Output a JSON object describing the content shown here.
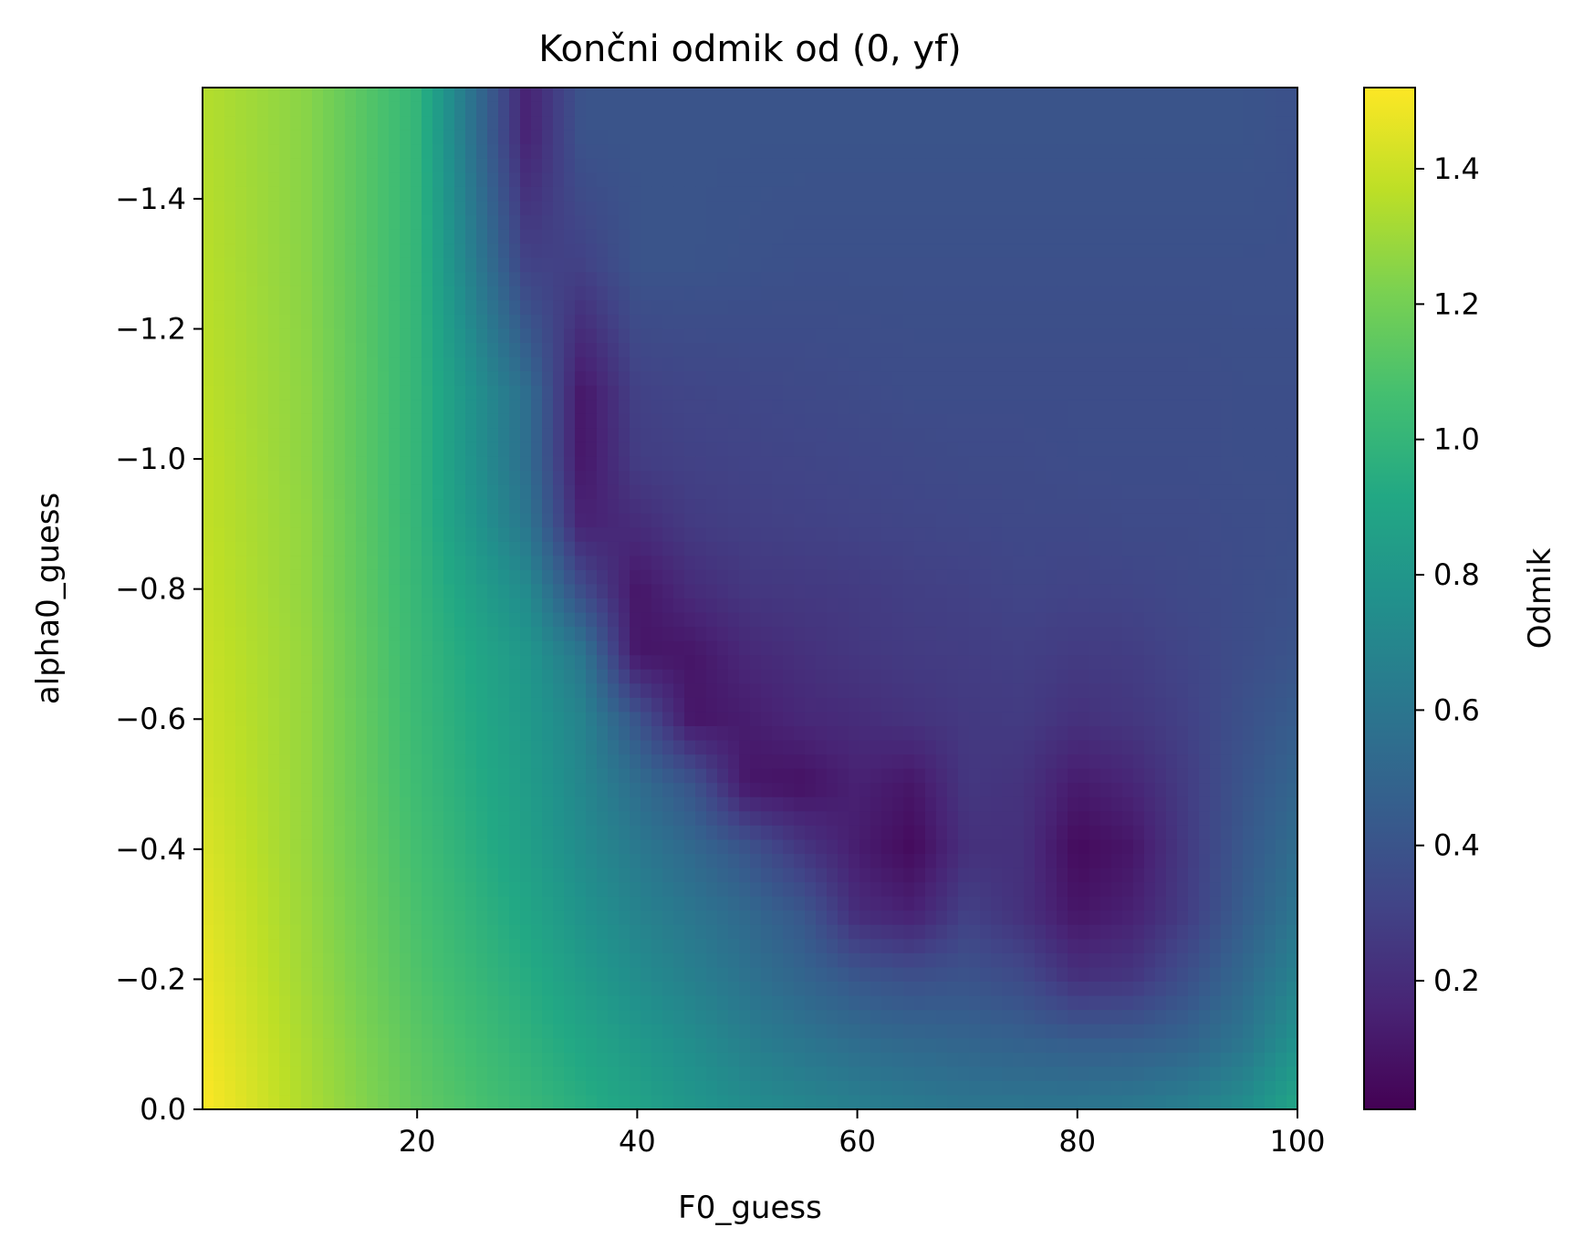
{
  "chart_data": {
    "type": "heatmap",
    "title": "Končni odmik od (0, yf)",
    "xlabel": "F0_guess",
    "ylabel": "alpha0_guess",
    "xlim": [
      0.5,
      100
    ],
    "ylim": [
      0,
      -1.571
    ],
    "y_axis_inverted": true,
    "x_ticks": [
      20,
      40,
      60,
      80,
      100
    ],
    "x_tick_labels": [
      "20",
      "40",
      "60",
      "80",
      "100"
    ],
    "y_ticks": [
      -1.4,
      -1.2,
      -1.0,
      -0.8,
      -0.6,
      -0.4,
      -0.2,
      0.0
    ],
    "y_tick_labels": [
      "−1.4",
      "−1.2",
      "−1.0",
      "−0.8",
      "−0.6",
      "−0.4",
      "−0.2",
      "0.0"
    ],
    "colormap": "viridis",
    "colorbar": {
      "label": "Odmik",
      "range": [
        0.01,
        1.52
      ],
      "ticks": [
        0.2,
        0.4,
        0.6,
        0.8,
        1.0,
        1.2,
        1.4
      ],
      "tick_labels": [
        "0.2",
        "0.4",
        "0.6",
        "0.8",
        "1.0",
        "1.2",
        "1.4"
      ]
    },
    "grid": false,
    "x_sample": [
      0.5,
      10,
      20,
      30,
      35,
      40,
      45,
      50,
      55,
      60,
      65,
      70,
      75,
      80,
      85,
      90,
      95,
      100
    ],
    "y_sample": [
      -1.5,
      -1.3,
      -1.1,
      -1.0,
      -0.9,
      -0.8,
      -0.7,
      -0.6,
      -0.5,
      -0.4,
      -0.3,
      -0.2,
      -0.1,
      0.0
    ],
    "values": [
      [
        1.35,
        1.25,
        1.0,
        0.15,
        0.4,
        0.4,
        0.4,
        0.4,
        0.4,
        0.4,
        0.4,
        0.4,
        0.4,
        0.4,
        0.4,
        0.4,
        0.4,
        0.38
      ],
      [
        1.36,
        1.25,
        1.0,
        0.3,
        0.3,
        0.4,
        0.4,
        0.39,
        0.38,
        0.38,
        0.38,
        0.38,
        0.38,
        0.38,
        0.38,
        0.38,
        0.38,
        0.38
      ],
      [
        1.37,
        1.26,
        1.0,
        0.55,
        0.1,
        0.3,
        0.32,
        0.33,
        0.34,
        0.35,
        0.36,
        0.36,
        0.36,
        0.36,
        0.36,
        0.36,
        0.37,
        0.37
      ],
      [
        1.38,
        1.26,
        1.0,
        0.55,
        0.1,
        0.28,
        0.3,
        0.31,
        0.32,
        0.33,
        0.34,
        0.35,
        0.35,
        0.36,
        0.36,
        0.36,
        0.37,
        0.37
      ],
      [
        1.38,
        1.27,
        1.0,
        0.6,
        0.15,
        0.2,
        0.27,
        0.29,
        0.3,
        0.31,
        0.32,
        0.33,
        0.34,
        0.34,
        0.35,
        0.35,
        0.36,
        0.37
      ],
      [
        1.39,
        1.27,
        1.01,
        0.72,
        0.35,
        0.1,
        0.2,
        0.25,
        0.26,
        0.27,
        0.29,
        0.3,
        0.32,
        0.31,
        0.32,
        0.34,
        0.36,
        0.38
      ],
      [
        1.4,
        1.28,
        1.02,
        0.8,
        0.6,
        0.1,
        0.1,
        0.18,
        0.22,
        0.25,
        0.27,
        0.28,
        0.29,
        0.27,
        0.28,
        0.32,
        0.36,
        0.4
      ],
      [
        1.41,
        1.28,
        1.03,
        0.82,
        0.68,
        0.4,
        0.1,
        0.13,
        0.18,
        0.2,
        0.23,
        0.26,
        0.27,
        0.22,
        0.25,
        0.3,
        0.38,
        0.45
      ],
      [
        1.42,
        1.28,
        1.04,
        0.84,
        0.7,
        0.55,
        0.4,
        0.1,
        0.08,
        0.15,
        0.1,
        0.25,
        0.23,
        0.12,
        0.17,
        0.28,
        0.4,
        0.5
      ],
      [
        1.44,
        1.28,
        1.06,
        0.86,
        0.73,
        0.62,
        0.52,
        0.4,
        0.25,
        0.13,
        0.05,
        0.22,
        0.22,
        0.05,
        0.1,
        0.27,
        0.42,
        0.55
      ],
      [
        1.46,
        1.29,
        1.08,
        0.9,
        0.78,
        0.68,
        0.6,
        0.52,
        0.42,
        0.2,
        0.15,
        0.3,
        0.22,
        0.1,
        0.15,
        0.28,
        0.45,
        0.6
      ],
      [
        1.48,
        1.3,
        1.1,
        0.94,
        0.84,
        0.74,
        0.66,
        0.58,
        0.5,
        0.42,
        0.38,
        0.4,
        0.35,
        0.22,
        0.25,
        0.38,
        0.52,
        0.68
      ],
      [
        1.5,
        1.32,
        1.13,
        0.98,
        0.9,
        0.82,
        0.74,
        0.66,
        0.6,
        0.55,
        0.52,
        0.5,
        0.48,
        0.46,
        0.46,
        0.5,
        0.6,
        0.78
      ],
      [
        1.52,
        1.33,
        1.15,
        1.02,
        0.95,
        0.88,
        0.8,
        0.74,
        0.7,
        0.66,
        0.63,
        0.6,
        0.6,
        0.6,
        0.62,
        0.66,
        0.74,
        0.9
      ]
    ]
  }
}
